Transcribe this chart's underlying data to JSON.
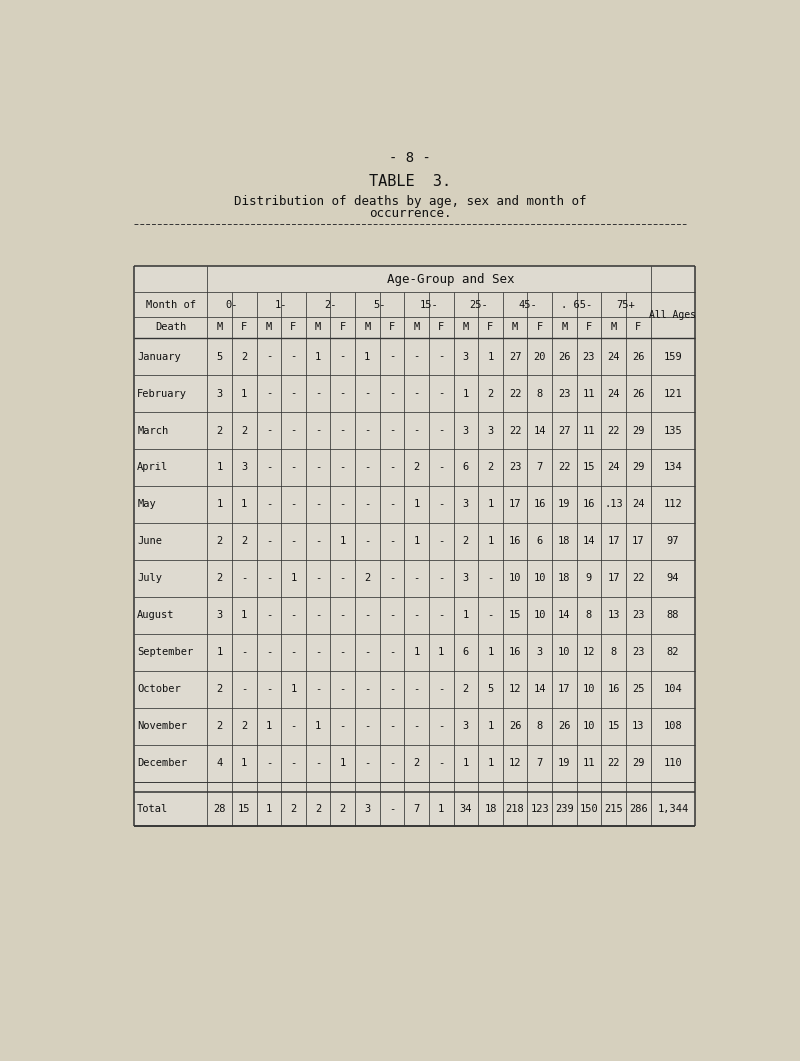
{
  "page_number": "- 8 -",
  "title": "TABLE  3.",
  "subtitle_line1": "Distribution of deaths by age, sex and month of",
  "subtitle_line2": "occurrence.",
  "age_groups": [
    "0-",
    "1-",
    "2-",
    "5-",
    "15-",
    "25-",
    "45-",
    ". 65-",
    "75+"
  ],
  "mf_labels": [
    "M",
    "F",
    "M",
    "F",
    "M",
    "F",
    "M",
    "F",
    "M",
    "F",
    "M",
    "F",
    "M",
    "F",
    "M",
    "F",
    "M",
    "F"
  ],
  "rows": [
    {
      "month": "January",
      "vals": [
        "5",
        "2",
        "-",
        "-",
        "1",
        "-",
        "1",
        "-",
        "-",
        "-",
        "3",
        "1",
        "27",
        "20",
        "26",
        "23",
        "24",
        "26"
      ],
      "total": "159"
    },
    {
      "month": "February",
      "vals": [
        "3",
        "1",
        "-",
        "-",
        "-",
        "-",
        "-",
        "-",
        "-",
        "-",
        "1",
        "2",
        "22",
        "8",
        "23",
        "11",
        "24",
        "26"
      ],
      "total": "121"
    },
    {
      "month": "March",
      "vals": [
        "2",
        "2",
        "-",
        "-",
        "-",
        "-",
        "-",
        "-",
        "-",
        "-",
        "3",
        "3",
        "22",
        "14",
        "27",
        "11",
        "22",
        "29"
      ],
      "total": "135"
    },
    {
      "month": "April",
      "vals": [
        "1",
        "3",
        "-",
        "-",
        "-",
        "-",
        "-",
        "-",
        "2",
        "-",
        "6",
        "2",
        "23",
        "7",
        "22",
        "15",
        "24",
        "29"
      ],
      "total": "134"
    },
    {
      "month": "May",
      "vals": [
        "1",
        "1",
        "-",
        "-",
        "-",
        "-",
        "-",
        "-",
        "1",
        "-",
        "3",
        "1",
        "17",
        "16",
        "19",
        "16",
        ".13",
        "24"
      ],
      "total": "112"
    },
    {
      "month": "June",
      "vals": [
        "2",
        "2",
        "-",
        "-",
        "-",
        "1",
        "-",
        "-",
        "1",
        "-",
        "2",
        "1",
        "16",
        "6",
        "18",
        "14",
        "17",
        "17"
      ],
      "total": "97"
    },
    {
      "month": "July",
      "vals": [
        "2",
        "-",
        "-",
        "1",
        "-",
        "-",
        "2",
        "-",
        "-",
        "-",
        "3",
        "-",
        "10",
        "10",
        "18",
        "9",
        "17",
        "22"
      ],
      "total": "94"
    },
    {
      "month": "August",
      "vals": [
        "3",
        "1",
        "-",
        "-",
        "-",
        "-",
        "-",
        "-",
        "-",
        "-",
        "1",
        "-",
        "15",
        "10",
        "14",
        "8",
        "13",
        "23"
      ],
      "total": "88"
    },
    {
      "month": "September",
      "vals": [
        "1",
        "-",
        "-",
        "-",
        "-",
        "-",
        "-",
        "-",
        "1",
        "1",
        "6",
        "1",
        "16",
        "3",
        "10",
        "12",
        "8",
        "23"
      ],
      "total": "82"
    },
    {
      "month": "October",
      "vals": [
        "2",
        "-",
        "-",
        "1",
        "-",
        "-",
        "-",
        "-",
        "-",
        "-",
        "2",
        "5",
        "12",
        "14",
        "17",
        "10",
        "16",
        "25"
      ],
      "total": "104"
    },
    {
      "month": "November",
      "vals": [
        "2",
        "2",
        "1",
        "-",
        "1",
        "-",
        "-",
        "-",
        "-",
        "-",
        "3",
        "1",
        "26",
        "8",
        "26",
        "10",
        "15",
        "13"
      ],
      "total": "108"
    },
    {
      "month": "December",
      "vals": [
        "4",
        "1",
        "-",
        "-",
        "-",
        "1",
        "-",
        "-",
        "2",
        "-",
        "1",
        "1",
        "12",
        "7",
        "19",
        "11",
        "22",
        "29"
      ],
      "total": "110"
    }
  ],
  "total_row": {
    "month": "Total",
    "vals": [
      "28",
      "15",
      "1",
      "2",
      "2",
      "2",
      "3",
      "-",
      "7",
      "1",
      "34",
      "18",
      "218",
      "123",
      "239",
      "150",
      "215",
      "286"
    ],
    "total": "1,344"
  },
  "bg_color": "#d6d0be",
  "text_color": "#111111",
  "line_color": "#333333"
}
